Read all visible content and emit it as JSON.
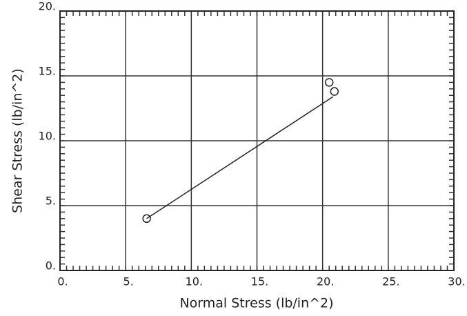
{
  "chart_data": {
    "type": "scatter",
    "xlabel": "Normal Stress (lb/in^2)",
    "ylabel": "Shear Stress (lb/in^2)",
    "series": [
      {
        "x": [
          6.6,
          20.5,
          20.9
        ],
        "values": [
          4.0,
          14.5,
          13.8
        ],
        "color": "#222"
      }
    ],
    "fit": {
      "x": [
        6.6,
        20.8
      ],
      "values": [
        4.0,
        13.4
      ],
      "color": "#222"
    },
    "xlim": [
      0,
      30
    ],
    "ylim": [
      0,
      20
    ],
    "xticks": [
      {
        "value": 0,
        "label": "0."
      },
      {
        "value": 5,
        "label": "5."
      },
      {
        "value": 10,
        "label": "10."
      },
      {
        "value": 15,
        "label": "15."
      },
      {
        "value": 20,
        "label": "20."
      },
      {
        "value": 25,
        "label": "25."
      },
      {
        "value": 30,
        "label": "30."
      }
    ],
    "yticks": [
      {
        "value": 0,
        "label": "0."
      },
      {
        "value": 5,
        "label": "5."
      },
      {
        "value": 10,
        "label": "10."
      },
      {
        "value": 15,
        "label": "15."
      },
      {
        "value": 20,
        "label": "20."
      }
    ],
    "grid": true,
    "minor_ticks": true
  }
}
